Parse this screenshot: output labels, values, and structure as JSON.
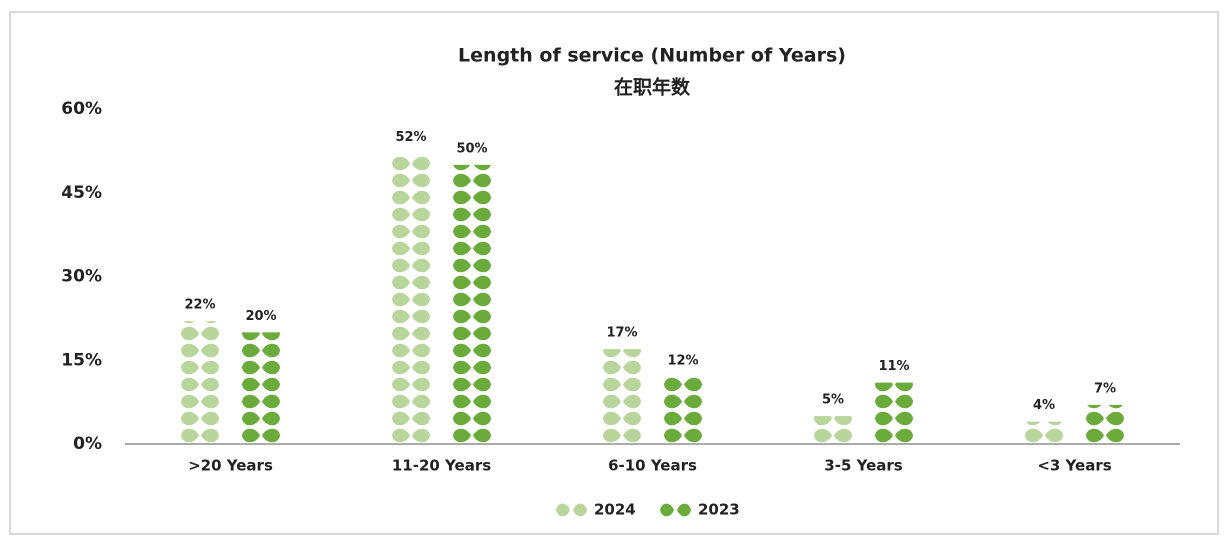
{
  "chart_data": {
    "type": "bar",
    "title": "Length of service (Number of Years)",
    "subtitle": "在职年数",
    "categories": [
      ">20 Years",
      "11-20 Years",
      "6-10 Years",
      "3-5 Years",
      "<3 Years"
    ],
    "series": [
      {
        "name": "2024",
        "color": "#b8d59c",
        "values": [
          22,
          52,
          17,
          5,
          4
        ],
        "value_labels": [
          "22%",
          "52%",
          "17%",
          "5%",
          "4%"
        ]
      },
      {
        "name": "2023",
        "color": "#6aab3c",
        "values": [
          20,
          50,
          12,
          11,
          7
        ],
        "value_labels": [
          "20%",
          "50%",
          "12%",
          "11%",
          "7%"
        ]
      }
    ],
    "ylim": [
      0,
      60
    ],
    "yticks": [
      {
        "value": 0,
        "label": "0%"
      },
      {
        "value": 15,
        "label": "15%"
      },
      {
        "value": 30,
        "label": "30%"
      },
      {
        "value": 45,
        "label": "45%"
      },
      {
        "value": 60,
        "label": "60%"
      }
    ],
    "grid": false,
    "legend": "bottom"
  }
}
